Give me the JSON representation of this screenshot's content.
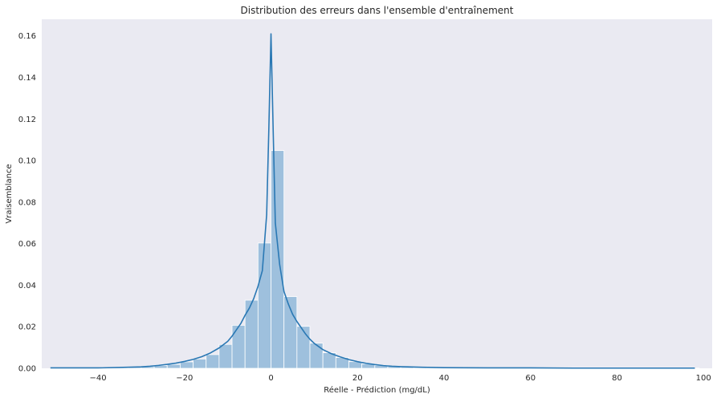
{
  "chart_data": {
    "type": "bar",
    "title": "Distribution des erreurs dans l'ensemble d'entraînement",
    "xlabel": "Réelle - Prédiction (mg/dL)",
    "ylabel": "Vraisemblance",
    "xlim": [
      -53,
      102
    ],
    "ylim": [
      0,
      0.168
    ],
    "xticks": [
      -40,
      -20,
      0,
      20,
      40,
      60,
      80,
      100
    ],
    "xtick_labels": [
      "−40",
      "−20",
      "0",
      "20",
      "40",
      "60",
      "80",
      "100"
    ],
    "yticks": [
      0,
      0.02,
      0.04,
      0.06,
      0.08,
      0.1,
      0.12,
      0.14,
      0.16
    ],
    "ytick_labels": [
      "0.00",
      "0.02",
      "0.04",
      "0.06",
      "0.08",
      "0.10",
      "0.12",
      "0.14",
      "0.16"
    ],
    "grid": false,
    "histogram": {
      "bin_edges": [
        -51,
        -48,
        -45,
        -42,
        -39,
        -36,
        -33,
        -30,
        -27,
        -24,
        -21,
        -18,
        -15,
        -12,
        -9,
        -6,
        -3,
        0,
        3,
        6,
        9,
        12,
        15,
        18,
        21,
        24,
        27,
        30,
        33,
        36,
        39,
        42,
        45,
        48,
        51,
        54,
        57,
        60,
        63,
        66,
        69,
        72,
        75,
        78,
        81,
        84,
        87,
        90,
        93,
        96,
        99
      ],
      "values": [
        0.0002,
        0.0002,
        0.0002,
        0.0002,
        0.0003,
        0.0004,
        0.0006,
        0.0008,
        0.0013,
        0.0019,
        0.0031,
        0.0045,
        0.0066,
        0.0115,
        0.0207,
        0.0328,
        0.0603,
        0.1048,
        0.0345,
        0.0202,
        0.0121,
        0.0075,
        0.0052,
        0.0032,
        0.0021,
        0.0014,
        0.0009,
        0.0006,
        0.0004,
        0.0003,
        0.0003,
        0.0002,
        0.0002,
        0.0001,
        0.0001,
        0.0001,
        0.0001,
        0.0001,
        0.0001,
        0.0001,
        0.0001,
        0.0001,
        0.0001,
        0.0001,
        0.0001,
        0.0001,
        0.0001,
        0.0001,
        0.0001,
        0.0001
      ],
      "color": "#9ec0dd"
    },
    "kde": {
      "x": [
        -51,
        -45,
        -40,
        -35,
        -30,
        -28,
        -26,
        -24,
        -22,
        -20,
        -18,
        -16,
        -14,
        -12,
        -10,
        -9,
        -8,
        -7,
        -6,
        -5,
        -4,
        -3,
        -2,
        -1,
        -0.5,
        0,
        0.5,
        1,
        2,
        3,
        4,
        5,
        6,
        7,
        8,
        9,
        10,
        12,
        14,
        16,
        18,
        20,
        22,
        24,
        26,
        28,
        30,
        35,
        40,
        50,
        60,
        70,
        80,
        90,
        98
      ],
      "y": [
        0.0002,
        0.0002,
        0.0002,
        0.0004,
        0.0007,
        0.001,
        0.0014,
        0.0019,
        0.0025,
        0.0033,
        0.0043,
        0.0056,
        0.0074,
        0.0098,
        0.013,
        0.0155,
        0.0185,
        0.0215,
        0.0255,
        0.029,
        0.0335,
        0.0395,
        0.047,
        0.074,
        0.115,
        0.161,
        0.115,
        0.07,
        0.05,
        0.037,
        0.031,
        0.026,
        0.0225,
        0.0195,
        0.0165,
        0.014,
        0.012,
        0.009,
        0.007,
        0.0055,
        0.0042,
        0.0032,
        0.0024,
        0.0018,
        0.0013,
        0.001,
        0.0008,
        0.0005,
        0.0003,
        0.0002,
        0.0002,
        0.0001,
        0.0001,
        0.0001,
        0.0001
      ],
      "color": "#2a78b4"
    }
  },
  "style": {
    "plot_background": "#eaeaf2",
    "page_background": "#ffffff",
    "text_color": "#262626"
  }
}
